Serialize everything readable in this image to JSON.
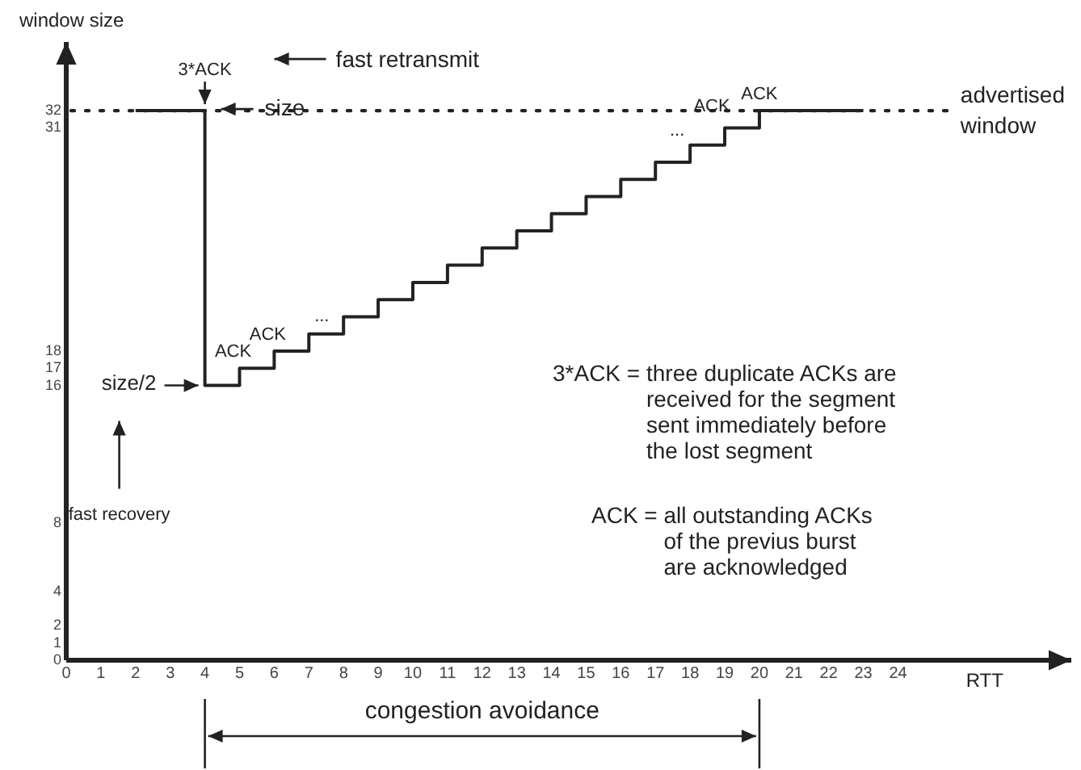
{
  "chart_data": {
    "type": "step",
    "xlabel": "RTT",
    "ylabel": "window size",
    "series": [
      {
        "color": "#222222",
        "x": [
          2,
          4,
          5,
          6,
          7,
          8,
          9,
          10,
          11,
          12,
          13,
          14,
          15,
          16,
          17,
          18,
          19,
          20,
          23
        ],
        "values": [
          32,
          16,
          17,
          18,
          19,
          20,
          21,
          22,
          23,
          24,
          25,
          26,
          27,
          28,
          29,
          30,
          31,
          32,
          32
        ],
        "line_style": "solid"
      }
    ],
    "xlim": [
      0,
      29
    ],
    "ylim": [
      0,
      36
    ],
    "xticks": [
      0,
      1,
      2,
      3,
      4,
      5,
      6,
      7,
      8,
      9,
      10,
      11,
      12,
      13,
      14,
      15,
      16,
      17,
      18,
      19,
      20,
      21,
      22,
      23,
      24
    ],
    "yticks": [
      0,
      1,
      2,
      4,
      8,
      16,
      17,
      18,
      31,
      32
    ],
    "ref_lines": [
      {
        "axis": "y",
        "value": 32,
        "label": "advertised window",
        "line_style": "dotted"
      }
    ],
    "annotations": [
      "3*ACK",
      "fast retransmit",
      "size",
      {
        "text": "size/2",
        "x": 4,
        "y": 16
      },
      "fast recovery",
      {
        "text": "ACK",
        "x": 5,
        "y": 17
      },
      {
        "text": "ACK",
        "x": 6,
        "y": 18
      },
      {
        "text": "...",
        "x": 7,
        "y": 19
      },
      {
        "text": "...",
        "x": 18,
        "y": 30
      },
      {
        "text": "ACK",
        "x": 19,
        "y": 31
      },
      {
        "text": "ACK",
        "x": 20,
        "y": 32
      },
      "3*ACK = three duplicate ACKs are\nreceived for the segment\nsent immediately before\nthe lost segment",
      "ACK = all outstanding ACKs\nof the previus burst\nare acknowledged",
      "congestion avoidance"
    ],
    "grid": false,
    "legend": false,
    "marker": "none"
  }
}
